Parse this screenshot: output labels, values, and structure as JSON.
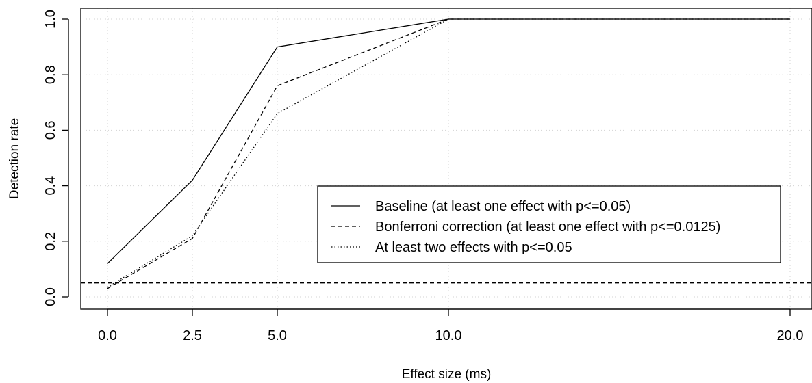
{
  "chart_data": {
    "type": "line",
    "xlabel": "Effect size (ms)",
    "ylabel": "Detection rate",
    "x": [
      0,
      2.5,
      5,
      10,
      20
    ],
    "x_tick_labels": [
      "0.0",
      "2.5",
      "5.0",
      "10.0",
      "20.0"
    ],
    "y_tick_labels": [
      "0.0",
      "0.2",
      "0.4",
      "0.6",
      "0.8",
      "1.0"
    ],
    "xlim": [
      -0.8,
      20.6
    ],
    "ylim": [
      -0.04,
      1.04
    ],
    "grid": true,
    "legend_position": "center-right",
    "series": [
      {
        "name": "Baseline (at least one effect with p<=0.05)",
        "line_style": "solid",
        "values": [
          0.12,
          0.42,
          0.9,
          1.0,
          1.0
        ]
      },
      {
        "name": "Bonferroni correction (at least one effect with p<=0.0125)",
        "line_style": "dashed",
        "values": [
          0.03,
          0.21,
          0.76,
          1.0,
          1.0
        ]
      },
      {
        "name": "At least two effects with p<=0.05",
        "line_style": "dotted",
        "values": [
          0.035,
          0.22,
          0.66,
          1.0,
          1.0
        ]
      }
    ],
    "reference_line": {
      "y": 0.05,
      "line_style": "dashed"
    }
  }
}
